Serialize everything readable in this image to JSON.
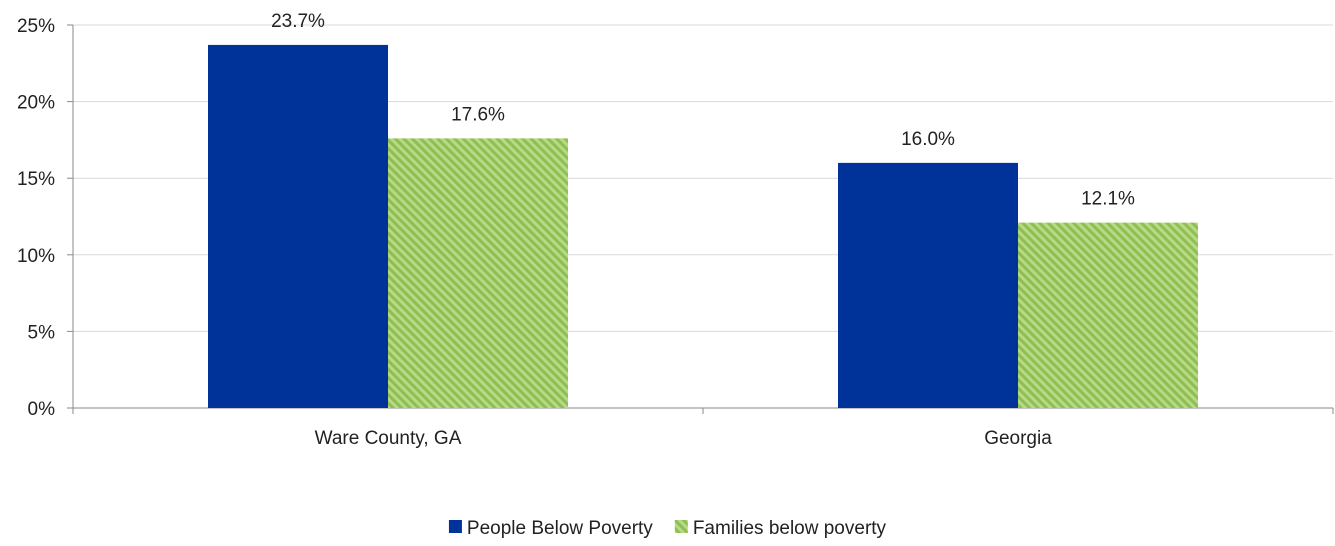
{
  "chart_data": {
    "type": "bar",
    "categories": [
      "Ware County, GA",
      "Georgia"
    ],
    "series": [
      {
        "name": "People Below Poverty",
        "values": [
          23.7,
          16.0
        ],
        "labels": [
          "23.7%",
          "16.0%"
        ],
        "color": "#003399",
        "pattern": "solid"
      },
      {
        "name": "Families below poverty",
        "values": [
          17.6,
          12.1
        ],
        "labels": [
          "17.6%",
          "12.1%"
        ],
        "color": "#9acb5c",
        "pattern": "diagonal-hatch"
      }
    ],
    "ylim": [
      0,
      25
    ],
    "yticks": [
      0,
      5,
      10,
      15,
      20,
      25
    ],
    "ytick_labels": [
      "0%",
      "5%",
      "10%",
      "15%",
      "20%",
      "25%"
    ],
    "grid": true,
    "legend_position": "bottom-center"
  }
}
